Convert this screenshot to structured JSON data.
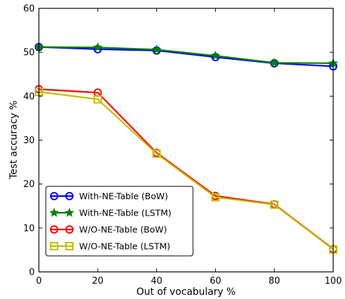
{
  "chart_data": {
    "type": "line",
    "xlabel": "Out of vocabulary %",
    "ylabel": "Test accuracy %",
    "xlim": [
      0,
      100
    ],
    "ylim": [
      0,
      60
    ],
    "xticks": [
      0,
      20,
      40,
      60,
      80,
      100
    ],
    "yticks": [
      0,
      10,
      20,
      30,
      40,
      50,
      60
    ],
    "grid": false,
    "legend_position": "lower-left",
    "x": [
      0,
      20,
      40,
      60,
      80,
      100
    ],
    "series": [
      {
        "name": "With-NE-Table (BoW)",
        "color": "#0000ff",
        "marker": "circle",
        "values": [
          51.2,
          50.7,
          50.4,
          48.9,
          47.5,
          46.8
        ]
      },
      {
        "name": "With-NE-Table (LSTM)",
        "color": "#008000",
        "marker": "star",
        "values": [
          51.2,
          51.1,
          50.6,
          49.2,
          47.6,
          47.5
        ]
      },
      {
        "name": "W/O-NE-Table (BoW)",
        "color": "#ff0000",
        "marker": "circle",
        "values": [
          41.6,
          40.8,
          27.1,
          17.3,
          15.4,
          5.2
        ]
      },
      {
        "name": "W/O-NE-Table (LSTM)",
        "color": "#bfbf00",
        "marker": "square",
        "values": [
          41.0,
          39.3,
          26.9,
          17.0,
          15.3,
          5.1
        ]
      }
    ]
  }
}
